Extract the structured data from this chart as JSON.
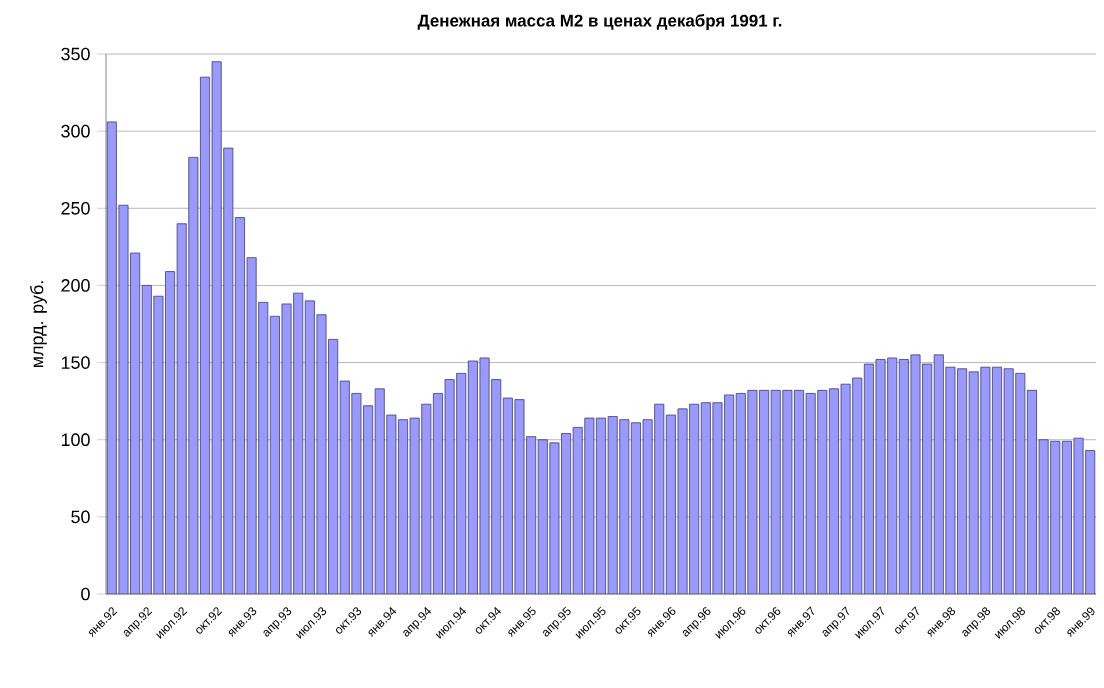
{
  "chart_data": {
    "type": "bar",
    "title": "Денежная масса М2 в ценах декабря 1991 г.",
    "ylabel": "млрд. руб.",
    "categories": [
      "янв.92",
      null,
      null,
      "апр.92",
      null,
      null,
      "июл.92",
      null,
      null,
      "окт.92",
      null,
      null,
      "янв.93",
      null,
      null,
      "апр.93",
      null,
      null,
      "июл.93",
      null,
      null,
      "окт.93",
      null,
      null,
      "янв.94",
      null,
      null,
      "апр.94",
      null,
      null,
      "июл.94",
      null,
      null,
      "окт.94",
      null,
      null,
      "янв.95",
      null,
      null,
      "апр.95",
      null,
      null,
      "июл.95",
      null,
      null,
      "окт.95",
      null,
      null,
      "янв.96",
      null,
      null,
      "апр.96",
      null,
      null,
      "июл.96",
      null,
      null,
      "окт.96",
      null,
      null,
      "янв.97",
      null,
      null,
      "апр.97",
      null,
      null,
      "июл.97",
      null,
      null,
      "окт.97",
      null,
      null,
      "янв.98",
      null,
      null,
      "апр.98",
      null,
      null,
      "июл.98",
      null,
      null,
      "окт.98",
      null,
      null,
      "янв.99"
    ],
    "values": [
      306,
      252,
      221,
      200,
      193,
      209,
      240,
      283,
      335,
      345,
      289,
      244,
      218,
      189,
      180,
      188,
      195,
      190,
      181,
      165,
      138,
      130,
      122,
      133,
      116,
      113,
      114,
      123,
      130,
      139,
      143,
      151,
      153,
      139,
      127,
      126,
      102,
      100,
      98,
      104,
      108,
      114,
      114,
      115,
      113,
      111,
      113,
      123,
      116,
      120,
      123,
      124,
      124,
      129,
      130,
      132,
      132,
      132,
      132,
      132,
      130,
      132,
      133,
      136,
      140,
      149,
      152,
      153,
      152,
      155,
      149,
      155,
      147,
      146,
      144,
      147,
      147,
      146,
      143,
      132,
      100,
      99,
      99,
      101,
      93
    ],
    "color": "#9999ff",
    "ylim": [
      0,
      350
    ],
    "yticks": [
      0,
      50,
      100,
      150,
      200,
      250,
      300,
      350
    ],
    "grid": "y"
  }
}
